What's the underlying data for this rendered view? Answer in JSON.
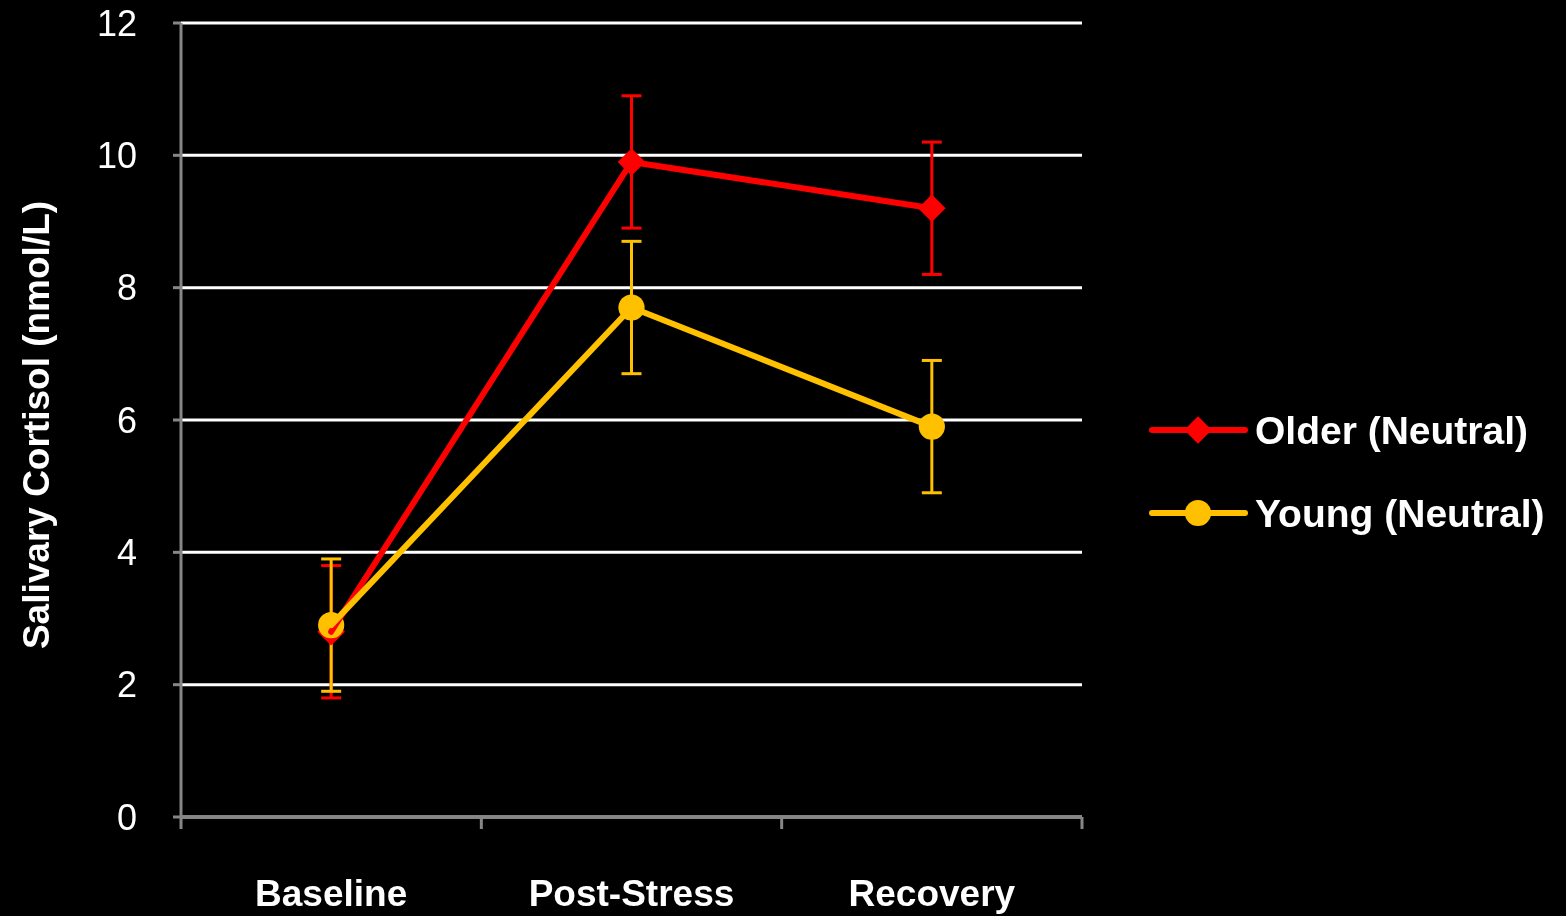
{
  "chart_data": {
    "type": "line",
    "ylabel": "Salivary Cortisol (nmol/L)",
    "categories": [
      "Baseline",
      "Post-Stress",
      "Recovery"
    ],
    "series": [
      {
        "name": "Older (Neutral)",
        "color": "#ff0000",
        "marker": "diamond",
        "values": [
          2.8,
          9.9,
          9.2
        ],
        "errors": [
          1.0,
          1.0,
          1.0
        ]
      },
      {
        "name": "Young (Neutral)",
        "color": "#ffc000",
        "marker": "circle",
        "values": [
          2.9,
          7.7,
          5.9
        ],
        "errors": [
          1.0,
          1.0,
          1.0
        ]
      }
    ],
    "ylim": [
      0,
      12
    ],
    "yticks": [
      0,
      2,
      4,
      6,
      8,
      10,
      12
    ],
    "grid": "y",
    "legend": "right"
  }
}
